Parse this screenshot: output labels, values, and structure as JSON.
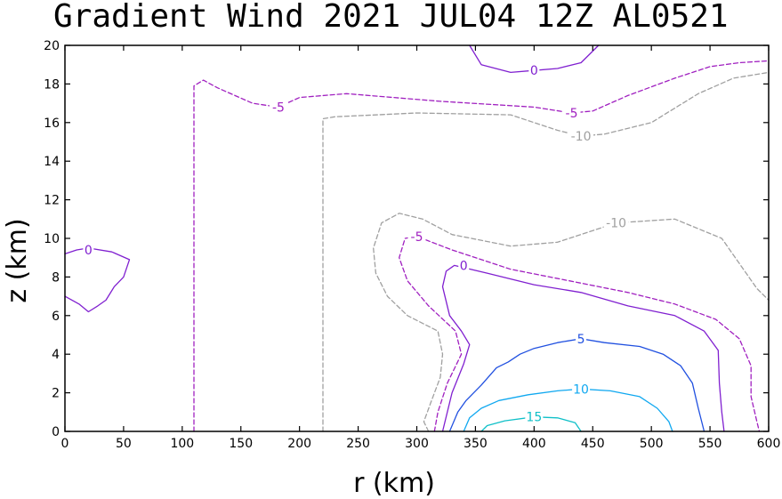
{
  "chart_data": {
    "type": "contour",
    "title": "Gradient Wind 2021 JUL04 12Z  AL0521",
    "xlabel": "r (km)",
    "ylabel": "z (km)",
    "xlim": [
      0,
      600
    ],
    "ylim": [
      0,
      20
    ],
    "xticks": [
      "0",
      "50",
      "100",
      "150",
      "200",
      "250",
      "300",
      "350",
      "400",
      "450",
      "500",
      "550",
      "600"
    ],
    "yticks": [
      "0",
      "2",
      "4",
      "6",
      "8",
      "10",
      "12",
      "14",
      "16",
      "18",
      "20"
    ],
    "levels": [
      {
        "value": -10,
        "label": "-10",
        "color": "#a0a0a0",
        "dashed": true,
        "labels_at": [
          [
            440,
            15.3
          ],
          [
            470,
            10.8
          ]
        ],
        "paths": [
          [
            [
              220,
              0
            ],
            [
              220,
              16.2
            ],
            [
              230,
              16.3
            ],
            [
              300,
              16.5
            ],
            [
              380,
              16.4
            ],
            [
              420,
              15.6
            ],
            [
              440,
              15.3
            ],
            [
              460,
              15.4
            ],
            [
              500,
              16.0
            ],
            [
              540,
              17.5
            ],
            [
              570,
              18.3
            ],
            [
              600,
              18.6
            ]
          ],
          [
            [
              310,
              0
            ],
            [
              306,
              0.5
            ],
            [
              312,
              1.5
            ],
            [
              320,
              2.8
            ],
            [
              322,
              4.0
            ],
            [
              318,
              5.2
            ],
            [
              292,
              6.0
            ],
            [
              275,
              7.0
            ],
            [
              265,
              8.2
            ],
            [
              263,
              9.5
            ],
            [
              270,
              10.8
            ],
            [
              285,
              11.3
            ],
            [
              305,
              11.0
            ],
            [
              330,
              10.2
            ],
            [
              380,
              9.6
            ],
            [
              420,
              9.8
            ],
            [
              470,
              10.8
            ],
            [
              520,
              11.0
            ],
            [
              560,
              10.0
            ],
            [
              590,
              7.4
            ],
            [
              600,
              6.8
            ]
          ]
        ]
      },
      {
        "value": -5,
        "label": "-5",
        "color": "#a020c0",
        "dashed": true,
        "labels_at": [
          [
            182,
            16.8
          ],
          [
            432,
            16.5
          ],
          [
            300,
            10.1
          ]
        ],
        "paths": [
          [
            [
              110,
              0
            ],
            [
              110,
              17.9
            ],
            [
              118,
              18.2
            ],
            [
              130,
              17.8
            ],
            [
              160,
              17.0
            ],
            [
              182,
              16.8
            ],
            [
              200,
              17.3
            ],
            [
              240,
              17.5
            ],
            [
              320,
              17.1
            ],
            [
              400,
              16.8
            ],
            [
              432,
              16.5
            ],
            [
              450,
              16.6
            ],
            [
              480,
              17.4
            ],
            [
              520,
              18.3
            ],
            [
              550,
              18.9
            ],
            [
              575,
              19.1
            ],
            [
              600,
              19.2
            ]
          ],
          [
            [
              315,
              0
            ],
            [
              318,
              1.0
            ],
            [
              326,
              2.5
            ],
            [
              338,
              4.0
            ],
            [
              333,
              5.2
            ],
            [
              310,
              6.5
            ],
            [
              292,
              7.8
            ],
            [
              285,
              9.0
            ],
            [
              290,
              10.0
            ],
            [
              300,
              10.1
            ],
            [
              330,
              9.4
            ],
            [
              380,
              8.4
            ],
            [
              430,
              7.8
            ],
            [
              480,
              7.2
            ],
            [
              520,
              6.6
            ],
            [
              555,
              5.8
            ],
            [
              575,
              4.8
            ],
            [
              585,
              3.4
            ],
            [
              585,
              1.8
            ],
            [
              590,
              0.5
            ],
            [
              592,
              0
            ]
          ]
        ]
      },
      {
        "value": 0,
        "label": "0",
        "color": "#8020d0",
        "dashed": false,
        "labels_at": [
          [
            400,
            18.7
          ],
          [
            20,
            9.4
          ],
          [
            340,
            8.6
          ]
        ],
        "paths": [
          [
            [
              345,
              20
            ],
            [
              355,
              19.0
            ],
            [
              380,
              18.6
            ],
            [
              400,
              18.7
            ],
            [
              420,
              18.8
            ],
            [
              440,
              19.1
            ],
            [
              455,
              20
            ]
          ],
          [
            [
              0,
              9.2
            ],
            [
              10,
              9.4
            ],
            [
              20,
              9.5
            ],
            [
              40,
              9.3
            ],
            [
              55,
              8.9
            ],
            [
              50,
              8.0
            ],
            [
              42,
              7.5
            ],
            [
              35,
              6.8
            ],
            [
              28,
              6.5
            ],
            [
              20,
              6.2
            ],
            [
              12,
              6.6
            ],
            [
              0,
              7.0
            ]
          ],
          [
            [
              322,
              0
            ],
            [
              330,
              2.0
            ],
            [
              340,
              3.5
            ],
            [
              345,
              4.5
            ],
            [
              338,
              5.2
            ],
            [
              328,
              6.0
            ],
            [
              322,
              7.5
            ],
            [
              325,
              8.3
            ],
            [
              332,
              8.6
            ],
            [
              360,
              8.2
            ],
            [
              400,
              7.6
            ],
            [
              440,
              7.2
            ],
            [
              480,
              6.5
            ],
            [
              520,
              6.0
            ],
            [
              545,
              5.2
            ],
            [
              557,
              4.2
            ],
            [
              558,
              2.5
            ],
            [
              560,
              1.0
            ],
            [
              562,
              0
            ]
          ]
        ]
      },
      {
        "value": 5,
        "label": "5",
        "color": "#2050e0",
        "dashed": false,
        "labels_at": [
          [
            440,
            4.8
          ]
        ],
        "paths": [
          [
            [
              328,
              0
            ],
            [
              335,
              1.0
            ],
            [
              342,
              1.6
            ],
            [
              355,
              2.4
            ],
            [
              368,
              3.3
            ],
            [
              378,
              3.6
            ],
            [
              388,
              4.0
            ],
            [
              400,
              4.3
            ],
            [
              420,
              4.6
            ],
            [
              440,
              4.8
            ],
            [
              460,
              4.6
            ],
            [
              490,
              4.4
            ],
            [
              510,
              4.0
            ],
            [
              525,
              3.4
            ],
            [
              535,
              2.5
            ],
            [
              540,
              1.2
            ],
            [
              545,
              0
            ]
          ]
        ]
      },
      {
        "value": 10,
        "label": "10",
        "color": "#10a8f0",
        "dashed": false,
        "labels_at": [
          [
            440,
            2.2
          ]
        ],
        "paths": [
          [
            [
              340,
              0
            ],
            [
              345,
              0.7
            ],
            [
              355,
              1.2
            ],
            [
              370,
              1.6
            ],
            [
              395,
              1.9
            ],
            [
              420,
              2.1
            ],
            [
              440,
              2.2
            ],
            [
              465,
              2.1
            ],
            [
              490,
              1.8
            ],
            [
              505,
              1.2
            ],
            [
              515,
              0.5
            ],
            [
              518,
              0
            ]
          ]
        ]
      },
      {
        "value": 15,
        "label": "15",
        "color": "#10c0c8",
        "dashed": false,
        "labels_at": [
          [
            400,
            0.75
          ]
        ],
        "paths": [
          [
            [
              355,
              0
            ],
            [
              360,
              0.3
            ],
            [
              375,
              0.55
            ],
            [
              400,
              0.75
            ],
            [
              420,
              0.7
            ],
            [
              435,
              0.45
            ],
            [
              440,
              0
            ]
          ]
        ]
      }
    ]
  }
}
